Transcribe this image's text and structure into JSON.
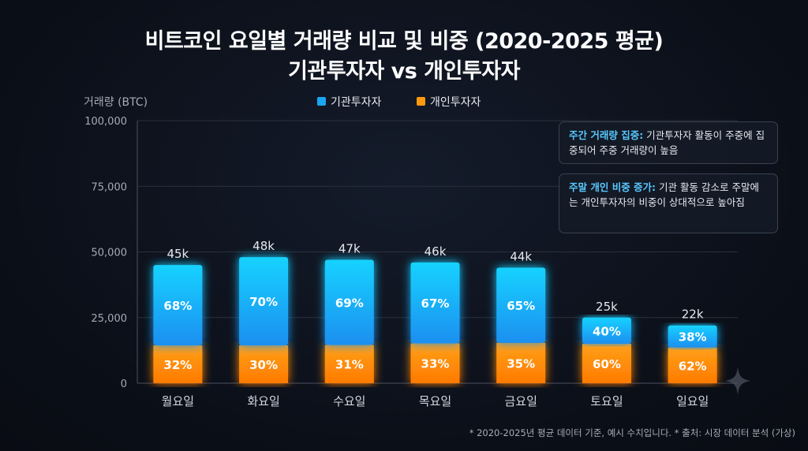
{
  "title_line1": "비트코인 요일별 거래량 비교 및 비중 (2020-2025 평균)",
  "title_line2": "기관투자자 vs 개인투자자",
  "callouts": [
    {
      "heading": "주간 거래량 집중:",
      "body": " 기관투자자 활동이 주중에 집중되어 주중 거래량이 높음"
    },
    {
      "heading": "주말 개인 비중 증가:",
      "body": " 기관 활동 감소로 주말에는 개인투자자의 비중이 상대적으로 높아짐"
    }
  ],
  "footnote": "* 2020-2025년 평균 데이터 기준, 예시 수치입니다.  * 출처: 시장 데이터 분석 (가상)",
  "colors": {
    "institutional": "#1aa6f0",
    "retail": "#ff9a0e"
  },
  "chart_data": {
    "type": "bar",
    "stacked": true,
    "ylabel": "거래량 (BTC)",
    "ylim": [
      0,
      100000
    ],
    "yticks": [
      0,
      25000,
      50000,
      75000,
      100000
    ],
    "ytick_labels": [
      "0",
      "25,000",
      "50,000",
      "75,000",
      "100,000"
    ],
    "grid": true,
    "legend": "top-center",
    "categories": [
      "월요일",
      "화요일",
      "수요일",
      "목요일",
      "금요일",
      "토요일",
      "일요일"
    ],
    "totals": [
      45000,
      48000,
      47000,
      46000,
      44000,
      25000,
      22000
    ],
    "total_labels": [
      "45k",
      "48k",
      "47k",
      "46k",
      "44k",
      "25k",
      "22k"
    ],
    "series": [
      {
        "name": "기관투자자",
        "percent": [
          68,
          70,
          69,
          67,
          65,
          40,
          38
        ],
        "labels": [
          "68%",
          "70%",
          "69%",
          "67%",
          "65%",
          "40%",
          "38%"
        ]
      },
      {
        "name": "개인투자자",
        "percent": [
          32,
          30,
          31,
          33,
          35,
          60,
          62
        ],
        "labels": [
          "32%",
          "30%",
          "31%",
          "33%",
          "35%",
          "60%",
          "62%"
        ]
      }
    ]
  }
}
